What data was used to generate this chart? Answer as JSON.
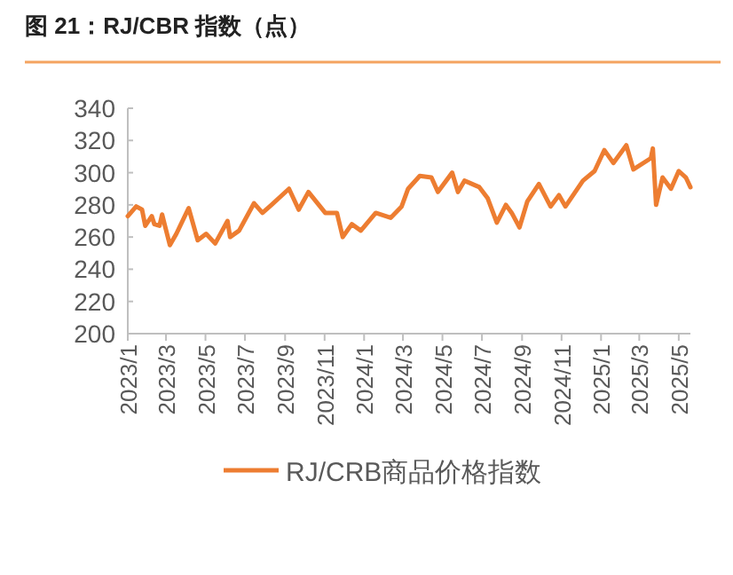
{
  "chart_data": {
    "type": "line",
    "title": "图 21：RJ/CBR 指数（点）",
    "x": [
      "2023-01-01",
      "2023-01-14",
      "2023-01-23",
      "2023-01-28",
      "2023-02-07",
      "2023-02-11",
      "2023-02-19",
      "2023-02-23",
      "2023-03-07",
      "2023-03-17",
      "2023-04-05",
      "2023-04-19",
      "2023-05-02",
      "2023-05-16",
      "2023-06-04",
      "2023-06-08",
      "2023-06-22",
      "2023-07-15",
      "2023-07-28",
      "2023-08-11",
      "2023-09-07",
      "2023-09-22",
      "2023-10-07",
      "2023-11-02",
      "2023-11-20",
      "2023-11-29",
      "2023-12-13",
      "2023-12-27",
      "2024-01-19",
      "2024-02-11",
      "2024-02-28",
      "2024-03-09",
      "2024-03-27",
      "2024-04-14",
      "2024-04-24",
      "2024-05-16",
      "2024-05-25",
      "2024-06-04",
      "2024-06-27",
      "2024-07-10",
      "2024-07-24",
      "2024-08-07",
      "2024-08-16",
      "2024-08-28",
      "2024-09-09",
      "2024-09-27",
      "2024-10-15",
      "2024-10-28",
      "2024-11-07",
      "2024-12-04",
      "2024-12-22",
      "2025-01-06",
      "2025-01-20",
      "2025-02-09",
      "2025-02-20",
      "2025-03-19",
      "2025-03-22",
      "2025-03-27",
      "2025-04-06",
      "2025-04-19",
      "2025-05-01",
      "2025-05-12",
      "2025-05-19"
    ],
    "series": [
      {
        "name": "RJ/CRB商品价格指数",
        "color": "#ed7d31",
        "values": [
          273,
          279,
          277,
          267,
          273,
          268,
          267,
          274,
          255,
          262,
          278,
          258,
          262,
          256,
          270,
          260,
          264,
          281,
          275,
          280,
          290,
          277,
          288,
          275,
          275,
          260,
          268,
          264,
          275,
          272,
          279,
          290,
          298,
          297,
          288,
          300,
          288,
          295,
          291,
          284,
          269,
          280,
          275,
          266,
          282,
          293,
          279,
          286,
          279,
          295,
          301,
          314,
          306,
          317,
          302,
          309,
          315,
          280,
          297,
          290,
          301,
          297,
          291
        ]
      }
    ],
    "xlim": [
      "2023-01-01",
      "2025-05-19"
    ],
    "xticks": [
      {
        "value": "2023-01",
        "label": "2023/1"
      },
      {
        "value": "2023-03",
        "label": "2023/3"
      },
      {
        "value": "2023-05",
        "label": "2023/5"
      },
      {
        "value": "2023-07",
        "label": "2023/7"
      },
      {
        "value": "2023-09",
        "label": "2023/9"
      },
      {
        "value": "2023-11",
        "label": "2023/11"
      },
      {
        "value": "2024-01",
        "label": "2024/1"
      },
      {
        "value": "2024-03",
        "label": "2024/3"
      },
      {
        "value": "2024-05",
        "label": "2024/5"
      },
      {
        "value": "2024-07",
        "label": "2024/7"
      },
      {
        "value": "2024-09",
        "label": "2024/9"
      },
      {
        "value": "2024-11",
        "label": "2024/11"
      },
      {
        "value": "2025-01",
        "label": "2025/1"
      },
      {
        "value": "2025-03",
        "label": "2025/3"
      },
      {
        "value": "2025-05",
        "label": "2025/5"
      }
    ],
    "ylim": [
      200,
      340
    ],
    "yticks": [
      200,
      220,
      240,
      260,
      280,
      300,
      320,
      340
    ],
    "legend": "bottom",
    "grid": false
  }
}
